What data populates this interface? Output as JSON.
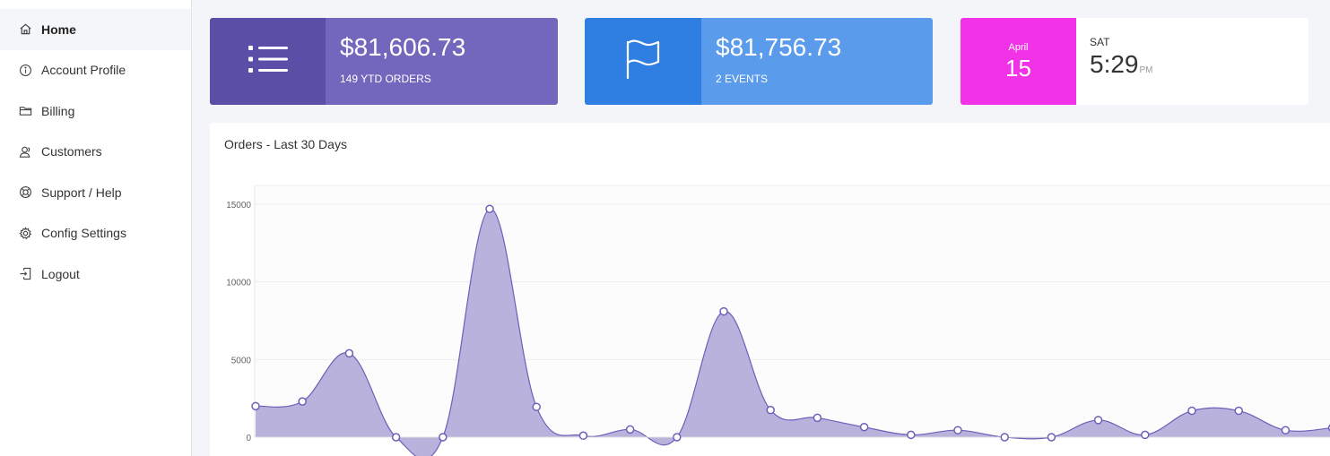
{
  "sidebar": {
    "items": [
      {
        "label": "Home",
        "icon": "home-icon"
      },
      {
        "label": "Account Profile",
        "icon": "info-icon"
      },
      {
        "label": "Billing",
        "icon": "folder-icon"
      },
      {
        "label": "Customers",
        "icon": "user-icon"
      },
      {
        "label": "Support / Help",
        "icon": "lifebuoy-icon"
      },
      {
        "label": "Config Settings",
        "icon": "gear-icon"
      },
      {
        "label": "Logout",
        "icon": "logout-icon"
      }
    ]
  },
  "cards": {
    "orders": {
      "amount": "$81,606.73",
      "sub": "149 YTD ORDERS",
      "icon": "list-icon"
    },
    "events": {
      "amount": "$81,756.73",
      "sub": "2 EVENTS",
      "icon": "flag-icon"
    },
    "date": {
      "month": "April",
      "day": "15",
      "weekday": "SAT",
      "time": "5:29",
      "ampm": "PM"
    }
  },
  "colors": {
    "orders_dark": "#5a4ea6",
    "orders_light": "#7366bd",
    "events_dark": "#2f7fe3",
    "events_light": "#5b9bec",
    "date_accent": "#f132e6",
    "series_fill": "#b5aedb",
    "series_line": "#6f5fb8"
  },
  "chart_data": {
    "type": "area",
    "title": "Orders - Last 30 Days",
    "xlabel": "",
    "ylabel": "",
    "ylim": [
      0,
      16000
    ],
    "yticks": [
      "0",
      "5000",
      "10000",
      "15000"
    ],
    "grid": true,
    "x": [
      1,
      2,
      3,
      4,
      5,
      6,
      7,
      8,
      9,
      10,
      11,
      12,
      13,
      14,
      15,
      16,
      17,
      18,
      19,
      20,
      21,
      22,
      23,
      24
    ],
    "series": [
      {
        "values": [
          2000,
          2300,
          5400,
          0,
          0,
          14700,
          1950,
          100,
          500,
          0,
          8100,
          1750,
          1250,
          650,
          150,
          450,
          0,
          0,
          1100,
          150,
          1700,
          1700,
          450,
          600
        ]
      }
    ]
  }
}
